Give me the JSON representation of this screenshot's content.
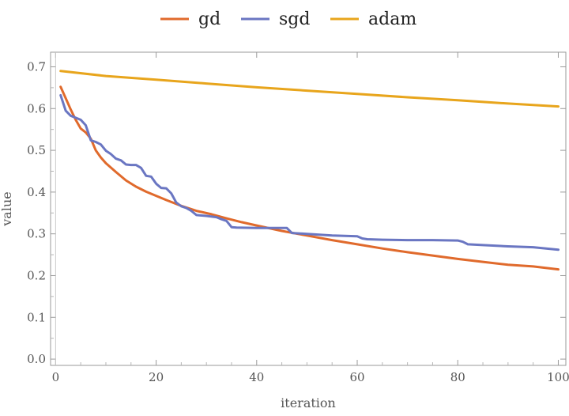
{
  "chart_data": {
    "type": "line",
    "xlabel": "iteration",
    "ylabel": "value",
    "xlim": [
      -1,
      101.5
    ],
    "ylim": [
      -0.015,
      0.735
    ],
    "xticks": [
      0,
      20,
      40,
      60,
      80,
      100
    ],
    "yticks": [
      0.0,
      0.1,
      0.2,
      0.3,
      0.4,
      0.5,
      0.6,
      0.7
    ],
    "grid": false,
    "legend": "top-center",
    "series": [
      {
        "name": "gd",
        "color": "#e06a2c",
        "x": [
          1,
          2,
          3,
          4,
          5,
          6,
          7,
          8,
          9,
          10,
          12,
          14,
          16,
          18,
          20,
          22,
          25,
          28,
          31,
          34,
          37,
          40,
          45,
          50,
          55,
          60,
          65,
          70,
          75,
          80,
          85,
          90,
          95,
          100
        ],
        "y": [
          0.652,
          0.625,
          0.598,
          0.573,
          0.552,
          0.543,
          0.528,
          0.5,
          0.483,
          0.469,
          0.448,
          0.428,
          0.413,
          0.401,
          0.391,
          0.381,
          0.367,
          0.355,
          0.347,
          0.337,
          0.328,
          0.32,
          0.307,
          0.296,
          0.285,
          0.275,
          0.265,
          0.256,
          0.248,
          0.24,
          0.233,
          0.226,
          0.222,
          0.215
        ]
      },
      {
        "name": "sgd",
        "color": "#6a76c2",
        "x": [
          1,
          2,
          3,
          4,
          5,
          6,
          7,
          8,
          9,
          10,
          11,
          12,
          13,
          14,
          15,
          16,
          17,
          18,
          19,
          20,
          21,
          22,
          23,
          24,
          25,
          26,
          27,
          28,
          30,
          32,
          33,
          34,
          35,
          36,
          40,
          46,
          47,
          50,
          55,
          60,
          61,
          62,
          65,
          70,
          75,
          80,
          81,
          82,
          85,
          90,
          95,
          100
        ],
        "y": [
          0.632,
          0.595,
          0.583,
          0.578,
          0.573,
          0.56,
          0.524,
          0.52,
          0.514,
          0.499,
          0.491,
          0.48,
          0.476,
          0.466,
          0.465,
          0.465,
          0.458,
          0.439,
          0.437,
          0.42,
          0.41,
          0.409,
          0.397,
          0.375,
          0.366,
          0.362,
          0.355,
          0.345,
          0.343,
          0.34,
          0.335,
          0.331,
          0.316,
          0.315,
          0.314,
          0.314,
          0.302,
          0.3,
          0.296,
          0.294,
          0.289,
          0.287,
          0.286,
          0.285,
          0.285,
          0.284,
          0.281,
          0.275,
          0.273,
          0.27,
          0.268,
          0.262
        ]
      },
      {
        "name": "adam",
        "color": "#e8a51c",
        "x": [
          1,
          10,
          20,
          30,
          40,
          50,
          60,
          70,
          80,
          90,
          100
        ],
        "y": [
          0.69,
          0.678,
          0.669,
          0.66,
          0.651,
          0.643,
          0.635,
          0.627,
          0.62,
          0.612,
          0.605
        ]
      }
    ]
  }
}
